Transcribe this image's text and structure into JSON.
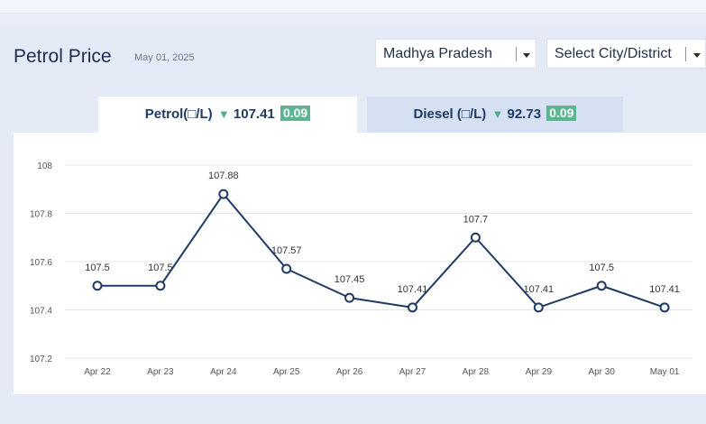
{
  "header": {
    "title": "Petrol Price",
    "date": "May 01, 2025"
  },
  "filters": {
    "state": "Madhya Pradesh",
    "city": "Select City/District"
  },
  "tabs": [
    {
      "label": "Petrol(□/L)",
      "price": "107.41",
      "change": "0.09",
      "active": true
    },
    {
      "label": "Diesel (□/L)",
      "price": "92.73",
      "change": "0.09",
      "active": false
    }
  ],
  "colors": {
    "line": "#1f3a63",
    "change_badge": "#5cb591",
    "active_tab": "#ffffff",
    "inactive_tab": "#d6e0f3"
  },
  "icons": {
    "change_arrow": "down-triangle-icon",
    "dropdown": "chevron-down-icon"
  },
  "chart_data": {
    "type": "line",
    "categories": [
      "Apr 22",
      "Apr 23",
      "Apr 24",
      "Apr 25",
      "Apr 26",
      "Apr 27",
      "Apr 28",
      "Apr 29",
      "Apr 30",
      "May 01"
    ],
    "series": [
      {
        "values": [
          107.5,
          107.5,
          107.88,
          107.57,
          107.45,
          107.41,
          107.7,
          107.41,
          107.5,
          107.41
        ],
        "data_labels": [
          "107.5",
          "107.5",
          "107.88",
          "107.57",
          "107.45",
          "107.41",
          "107.7",
          "107.41",
          "107.5",
          "107.41"
        ]
      }
    ],
    "y_ticks": [
      "107.2",
      "107.4",
      "107.6",
      "107.8",
      "108"
    ],
    "ylim": [
      107.2,
      108
    ],
    "grid": true,
    "title": "",
    "xlabel": "",
    "ylabel": ""
  }
}
